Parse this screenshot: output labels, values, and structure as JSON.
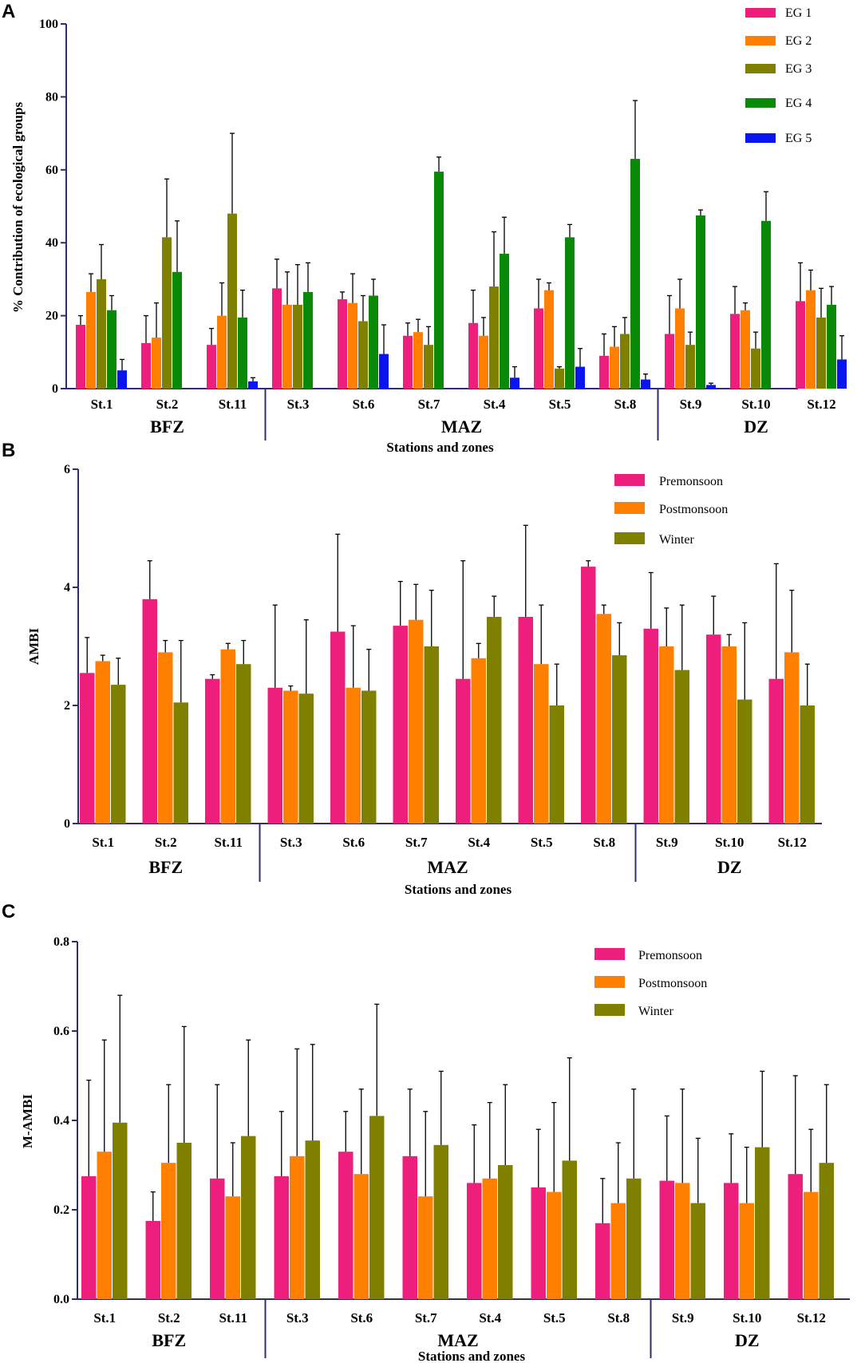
{
  "colors": {
    "eg1": "#ee1e7d",
    "eg2": "#ff7f00",
    "eg3": "#808000",
    "eg4": "#088a08",
    "eg5": "#0a14f0",
    "premonsoon": "#ee1e7d",
    "postmonsoon": "#ff7f00",
    "winter": "#808000",
    "axis": "#2e2e6e"
  },
  "chart_data": [
    {
      "panel": "A",
      "type": "bar",
      "ylabel": "% Contribution of ecological groups",
      "xlabel": "Stations and zones",
      "ylim": [
        0,
        100
      ],
      "yticks": [
        "0",
        "20",
        "40",
        "60",
        "80",
        "100"
      ],
      "categories": [
        "St.1",
        "St.2",
        "St.11",
        "St.3",
        "St.6",
        "St.7",
        "St.4",
        "St.5",
        "St.8",
        "St.9",
        "St.10",
        "St.12"
      ],
      "zones": [
        {
          "name": "BFZ",
          "from": 0,
          "to": 2
        },
        {
          "name": "MAZ",
          "from": 3,
          "to": 8
        },
        {
          "name": "DZ",
          "from": 9,
          "to": 11
        }
      ],
      "legend_position": "top-right",
      "series": [
        {
          "name": "EG 1",
          "color_key": "eg1",
          "values": [
            17.5,
            12.5,
            12,
            27.5,
            24.5,
            14.5,
            18,
            22,
            9,
            15,
            20.5,
            24
          ],
          "errors": [
            2.5,
            7.5,
            4.5,
            8,
            2,
            3.5,
            9,
            8,
            6,
            10.5,
            7.5,
            10.5
          ]
        },
        {
          "name": "EG 2",
          "color_key": "eg2",
          "values": [
            26.5,
            14,
            20,
            23,
            23.5,
            15.5,
            14.5,
            27,
            11.5,
            22,
            21.5,
            27
          ],
          "errors": [
            5,
            9.5,
            9,
            9,
            8,
            3.5,
            5,
            2,
            5.5,
            8,
            2,
            5.5
          ]
        },
        {
          "name": "EG 3",
          "color_key": "eg3",
          "values": [
            30,
            41.5,
            48,
            23,
            18.5,
            12,
            28,
            5.5,
            15,
            12,
            11,
            19.5
          ]
        },
        {
          "name": "EG 4",
          "color_key": "eg4",
          "values": [
            21.5,
            32,
            19.5,
            26.5,
            25.5,
            59.5,
            37,
            41.5,
            63,
            47.5,
            46,
            23
          ],
          "errors": [
            4,
            14,
            7.5,
            8,
            4.5,
            4,
            10,
            3.5,
            16,
            1.5,
            8,
            5
          ]
        },
        {
          "name": "EG 5",
          "color_key": "eg5",
          "values": [
            5,
            0,
            2,
            0,
            9.5,
            0,
            3,
            6,
            2.5,
            1,
            0,
            8
          ],
          "errors": [
            3,
            0,
            1,
            0,
            8,
            0,
            3,
            5,
            1.5,
            0.5,
            0,
            6.5
          ]
        }
      ],
      "series_errors_eg3": [
        9.5,
        16,
        22,
        11,
        7,
        5,
        15,
        0.5,
        4.5,
        3.5,
        4.5,
        8
      ]
    },
    {
      "panel": "B",
      "type": "bar",
      "ylabel": "AMBI",
      "xlabel": "Stations and zones",
      "ylim": [
        0,
        6
      ],
      "yticks": [
        "0",
        "2",
        "4",
        "6"
      ],
      "categories": [
        "St.1",
        "St.2",
        "St.11",
        "St.3",
        "St.6",
        "St.7",
        "St.4",
        "St.5",
        "St.8",
        "St.9",
        "St.10",
        "St.12"
      ],
      "zones": [
        {
          "name": "BFZ",
          "from": 0,
          "to": 2
        },
        {
          "name": "MAZ",
          "from": 3,
          "to": 8
        },
        {
          "name": "DZ",
          "from": 9,
          "to": 11
        }
      ],
      "legend_position": "top-right",
      "series": [
        {
          "name": "Premonsoon",
          "color_key": "premonsoon",
          "values": [
            2.55,
            3.8,
            2.45,
            2.3,
            3.25,
            3.35,
            2.45,
            3.5,
            4.35,
            3.3,
            3.2,
            2.45
          ],
          "errors": [
            0.6,
            0.65,
            0.07,
            1.4,
            1.65,
            0.75,
            2.0,
            1.55,
            0.1,
            0.95,
            0.65,
            1.95
          ]
        },
        {
          "name": "Postmonsoon",
          "color_key": "postmonsoon",
          "values": [
            2.75,
            2.9,
            2.95,
            2.25,
            2.3,
            3.45,
            2.8,
            2.7,
            3.55,
            3.0,
            3.0,
            2.9
          ],
          "errors": [
            0.1,
            0.2,
            0.1,
            0.08,
            1.05,
            0.6,
            0.25,
            1.0,
            0.15,
            0.65,
            0.2,
            1.05
          ]
        },
        {
          "name": "Winter",
          "color_key": "winter",
          "values": [
            2.35,
            2.05,
            2.7,
            2.2,
            2.25,
            3.0,
            3.5,
            2.0,
            2.85,
            2.6,
            2.1,
            2.0
          ],
          "errors": [
            0.45,
            1.05,
            0.4,
            1.25,
            0.7,
            0.95,
            0.35,
            0.7,
            0.55,
            1.1,
            1.3,
            0.7
          ]
        }
      ]
    },
    {
      "panel": "C",
      "type": "bar",
      "ylabel": "M-AMBI",
      "xlabel": "Stations and zones",
      "ylim": [
        0,
        0.8
      ],
      "yticks": [
        "0.0",
        "0.2",
        "0.4",
        "0.6",
        "0.8"
      ],
      "categories": [
        "St.1",
        "St.2",
        "St.11",
        "St.3",
        "St.6",
        "St.7",
        "St.4",
        "St.5",
        "St.8",
        "St.9",
        "St.10",
        "St.12"
      ],
      "zones": [
        {
          "name": "BFZ",
          "from": 0,
          "to": 2
        },
        {
          "name": "MAZ",
          "from": 3,
          "to": 8
        },
        {
          "name": "DZ",
          "from": 9,
          "to": 11
        }
      ],
      "legend_position": "top-right",
      "series": [
        {
          "name": "Premonsoon",
          "color_key": "premonsoon",
          "values": [
            0.275,
            0.175,
            0.27,
            0.275,
            0.33,
            0.32,
            0.26,
            0.25,
            0.17,
            0.265,
            0.26,
            0.28
          ],
          "errors": [
            0.215,
            0.065,
            0.21,
            0.145,
            0.09,
            0.15,
            0.13,
            0.13,
            0.1,
            0.145,
            0.11,
            0.22
          ]
        },
        {
          "name": "Postmonsoon",
          "color_key": "postmonsoon",
          "values": [
            0.33,
            0.305,
            0.23,
            0.32,
            0.28,
            0.23,
            0.27,
            0.24,
            0.215,
            0.26,
            0.215,
            0.24
          ],
          "errors": [
            0.25,
            0.175,
            0.12,
            0.24,
            0.19,
            0.19,
            0.17,
            0.2,
            0.135,
            0.21,
            0.125,
            0.14
          ]
        },
        {
          "name": "Winter",
          "color_key": "winter",
          "values": [
            0.395,
            0.35,
            0.365,
            0.355,
            0.41,
            0.345,
            0.3,
            0.31,
            0.27,
            0.215,
            0.34,
            0.305
          ],
          "errors": [
            0.285,
            0.26,
            0.215,
            0.215,
            0.25,
            0.165,
            0.18,
            0.23,
            0.2,
            0.145,
            0.17,
            0.175
          ]
        }
      ]
    }
  ]
}
